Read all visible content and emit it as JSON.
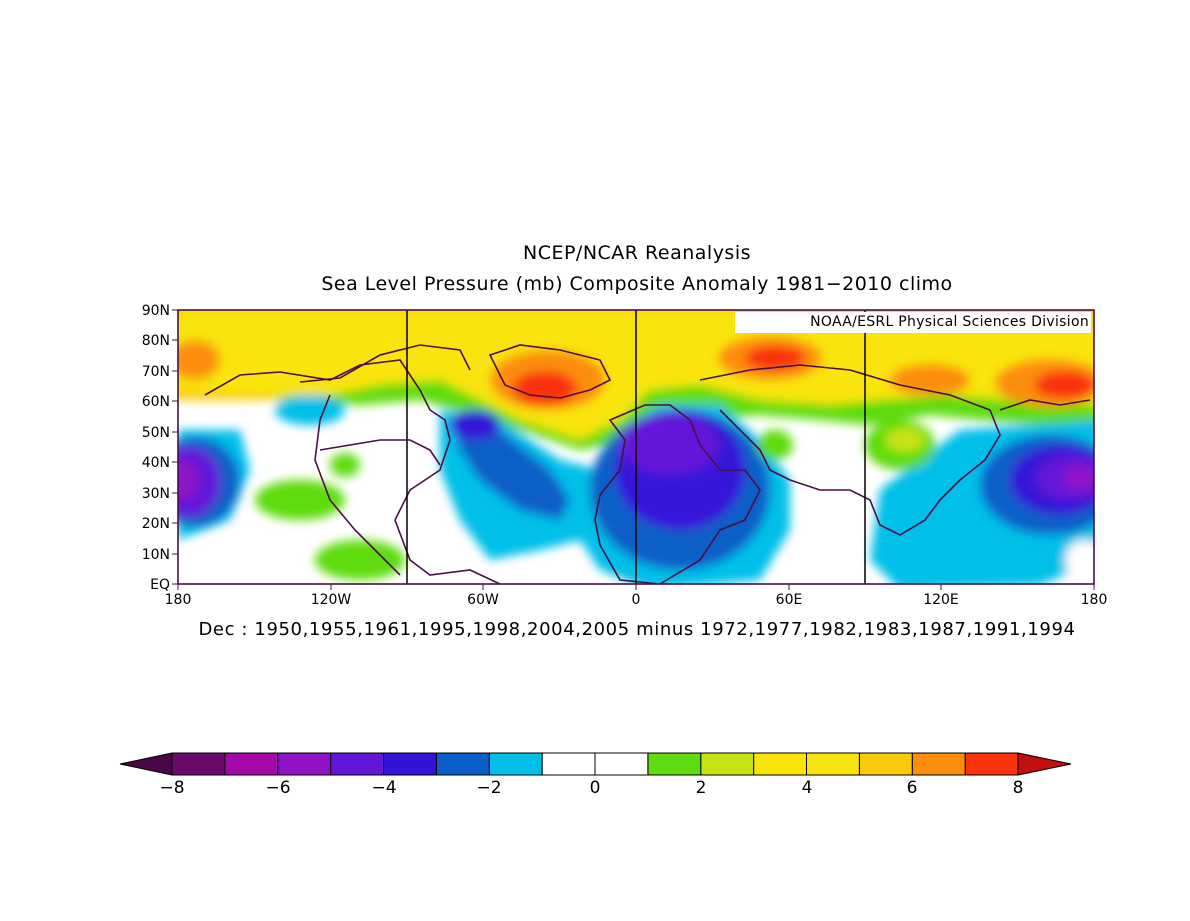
{
  "header": {
    "title": "NCEP/NCAR Reanalysis",
    "subtitle": "Sea Level Pressure (mb) Composite Anomaly 1981−2010 climo"
  },
  "map": {
    "credit": "NOAA/ESRL Physical Sciences Division",
    "lat_labels": [
      "90N",
      "80N",
      "70N",
      "60N",
      "50N",
      "40N",
      "30N",
      "20N",
      "10N",
      "EQ"
    ],
    "lon_labels": [
      "180",
      "120W",
      "60W",
      "0",
      "60E",
      "120E",
      "180"
    ],
    "caption": "Dec : 1950,1955,1961,1995,1998,2004,2005 minus 1972,1977,1982,1983,1987,1991,1994",
    "colors": {
      "frame": "#4a0f47",
      "coast": "#4a0f47"
    }
  },
  "colorbar": {
    "tick_labels": [
      "−8",
      "−6",
      "−4",
      "−2",
      "0",
      "2",
      "4",
      "6",
      "8"
    ],
    "colors": [
      "#6b0a6b",
      "#a509a8",
      "#8f12c6",
      "#6315d9",
      "#3413d8",
      "#0a5ec8",
      "#03bfe8",
      "#ffffff",
      "#ffffff",
      "#5fdc0f",
      "#c7e313",
      "#f9e40b",
      "#f8e411",
      "#f9c90b",
      "#fb8e0a",
      "#f9330c"
    ],
    "low_end_color": "#4a0747",
    "high_end_color": "#c30f0f"
  }
}
